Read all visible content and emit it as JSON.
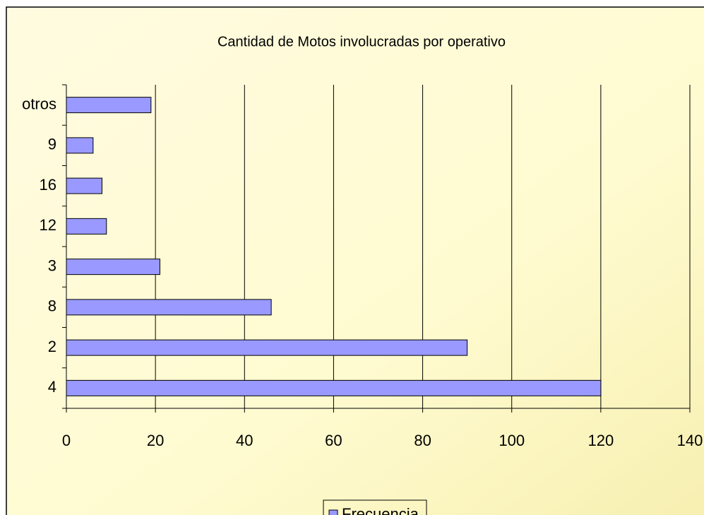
{
  "chart_data": {
    "type": "barh",
    "title": "Cantidad de Motos involucradas por operativo",
    "categories": [
      "4",
      "2",
      "8",
      "3",
      "12",
      "16",
      "9",
      "otros"
    ],
    "series": [
      {
        "name": "Frecuencia",
        "color": "#9999ff",
        "values": [
          120,
          90,
          46,
          21,
          9,
          8,
          6,
          19
        ]
      }
    ],
    "xlim": [
      0,
      140
    ],
    "xticks": [
      0,
      20,
      40,
      60,
      80,
      100,
      120,
      140
    ],
    "grid": true,
    "legend": "bottom"
  }
}
